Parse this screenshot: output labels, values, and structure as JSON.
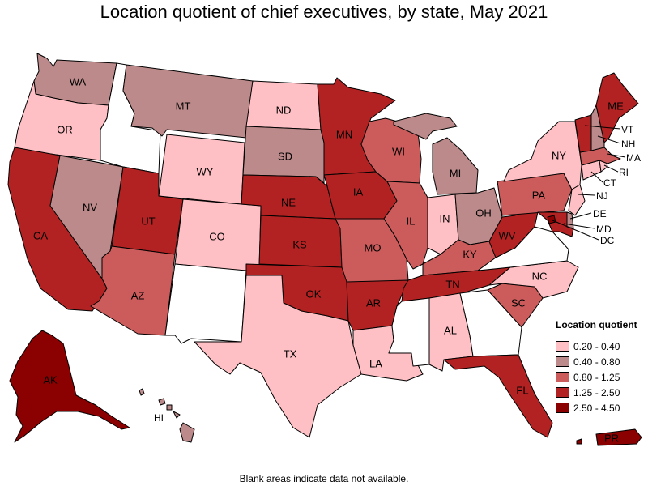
{
  "title": "Location quotient of chief executives, by state, May 2021",
  "footnote": "Blank areas indicate data not available.",
  "legend": {
    "title": "Location quotient",
    "bins": [
      {
        "label": "0.20 - 0.40",
        "color": "#ffc0c5"
      },
      {
        "label": "0.40 - 0.80",
        "color": "#bc8a8a"
      },
      {
        "label": "0.80 - 1.25",
        "color": "#cc5c5c"
      },
      {
        "label": "1.25 - 2.50",
        "color": "#b22222"
      },
      {
        "label": "2.50 - 4.50",
        "color": "#8b0000"
      }
    ]
  },
  "no_data_color": "#ffffff",
  "states": {
    "WA": {
      "label": "WA",
      "bin": 1
    },
    "OR": {
      "label": "OR",
      "bin": 0
    },
    "CA": {
      "label": "CA",
      "bin": 3
    },
    "NV": {
      "label": "NV",
      "bin": 1
    },
    "ID": {
      "label": "",
      "bin": null
    },
    "MT": {
      "label": "MT",
      "bin": 1
    },
    "WY": {
      "label": "WY",
      "bin": 0
    },
    "UT": {
      "label": "UT",
      "bin": 3
    },
    "AZ": {
      "label": "AZ",
      "bin": 2
    },
    "CO": {
      "label": "CO",
      "bin": 0
    },
    "NM": {
      "label": "",
      "bin": null
    },
    "ND": {
      "label": "ND",
      "bin": 0
    },
    "SD": {
      "label": "SD",
      "bin": 1
    },
    "NE": {
      "label": "NE",
      "bin": 3
    },
    "KS": {
      "label": "KS",
      "bin": 3
    },
    "OK": {
      "label": "OK",
      "bin": 3
    },
    "TX": {
      "label": "TX",
      "bin": 0
    },
    "MN": {
      "label": "MN",
      "bin": 3
    },
    "IA": {
      "label": "IA",
      "bin": 3
    },
    "MO": {
      "label": "MO",
      "bin": 2
    },
    "AR": {
      "label": "AR",
      "bin": 3
    },
    "LA": {
      "label": "LA",
      "bin": 0
    },
    "WI": {
      "label": "WI",
      "bin": 2
    },
    "IL": {
      "label": "IL",
      "bin": 2
    },
    "MI": {
      "label": "MI",
      "bin": 1
    },
    "IN": {
      "label": "IN",
      "bin": 0
    },
    "OH": {
      "label": "OH",
      "bin": 1
    },
    "KY": {
      "label": "KY",
      "bin": 2
    },
    "TN": {
      "label": "TN",
      "bin": 3
    },
    "MS": {
      "label": "",
      "bin": null
    },
    "AL": {
      "label": "AL",
      "bin": 0
    },
    "GA": {
      "label": "",
      "bin": null
    },
    "FL": {
      "label": "FL",
      "bin": 3
    },
    "SC": {
      "label": "SC",
      "bin": 2
    },
    "NC": {
      "label": "NC",
      "bin": 0
    },
    "VA": {
      "label": "",
      "bin": null
    },
    "WV": {
      "label": "WV",
      "bin": 3
    },
    "PA": {
      "label": "PA",
      "bin": 2
    },
    "NY": {
      "label": "NY",
      "bin": 0
    },
    "VT": {
      "label": "VT",
      "bin": 3
    },
    "NH": {
      "label": "NH",
      "bin": 1
    },
    "ME": {
      "label": "ME",
      "bin": 3
    },
    "MA": {
      "label": "MA",
      "bin": 2
    },
    "RI": {
      "label": "RI",
      "bin": 0
    },
    "CT": {
      "label": "CT",
      "bin": 0
    },
    "NJ": {
      "label": "NJ",
      "bin": 0
    },
    "DE": {
      "label": "DE",
      "bin": 1
    },
    "MD": {
      "label": "MD",
      "bin": 3
    },
    "DC": {
      "label": "DC",
      "bin": 4
    },
    "AK": {
      "label": "AK",
      "bin": 4
    },
    "HI": {
      "label": "HI",
      "bin": 1
    },
    "PR": {
      "label": "PR",
      "bin": 4
    }
  }
}
